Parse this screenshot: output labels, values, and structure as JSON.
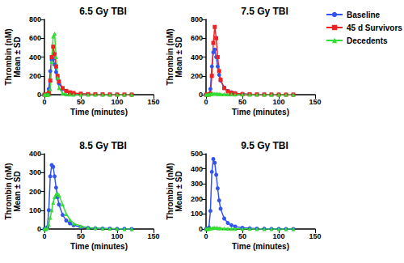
{
  "chart_data": [
    {
      "type": "line",
      "title": "6.5 Gy TBI",
      "x_label": "Time (minutes)",
      "y_label": "Thrombin (nM)\nMean ± SD",
      "x": [
        0,
        2,
        4,
        6,
        8,
        10,
        12,
        14,
        16,
        18,
        20,
        25,
        30,
        35,
        40,
        50,
        60,
        70,
        80,
        90,
        100,
        110,
        120
      ],
      "series": [
        {
          "name": "Baseline",
          "color": "#3355ee",
          "marker": "circle",
          "line_style": "solid",
          "values": [
            0,
            0,
            5,
            60,
            250,
            370,
            380,
            320,
            240,
            170,
            120,
            60,
            35,
            22,
            15,
            8,
            5,
            3,
            2,
            1,
            1,
            0,
            0
          ]
        },
        {
          "name": "45 d Survivors",
          "color": "#ee2222",
          "marker": "square",
          "line_style": "solid",
          "values": [
            0,
            0,
            0,
            20,
            150,
            400,
            510,
            430,
            300,
            200,
            140,
            70,
            40,
            25,
            18,
            10,
            6,
            4,
            3,
            2,
            1,
            1,
            0
          ]
        },
        {
          "name": "Decedents",
          "color": "#33dd33",
          "marker": "triangle",
          "line_style": "solid",
          "values": [
            0,
            0,
            0,
            0,
            60,
            350,
            620,
            650,
            400,
            180,
            70,
            15,
            5,
            2,
            1,
            0,
            0,
            0,
            0,
            0,
            0,
            0,
            0
          ]
        }
      ],
      "xlim": [
        0,
        150
      ],
      "xticks": [
        0,
        50,
        100,
        150
      ],
      "ylim": [
        0,
        800
      ],
      "yticks": [
        0,
        200,
        400,
        600,
        800
      ],
      "grid": false
    },
    {
      "type": "line",
      "title": "7.5 Gy TBI",
      "x_label": "Time (minutes)",
      "y_label": "Thrombin (nM)\nMean ± SD",
      "x": [
        0,
        2,
        4,
        6,
        8,
        10,
        12,
        14,
        16,
        18,
        20,
        25,
        30,
        35,
        40,
        50,
        60,
        70,
        80,
        90,
        100,
        110,
        120
      ],
      "series": [
        {
          "name": "Baseline",
          "color": "#3355ee",
          "marker": "circle",
          "line_style": "solid",
          "values": [
            0,
            0,
            5,
            60,
            300,
            450,
            480,
            400,
            300,
            210,
            150,
            75,
            40,
            25,
            16,
            8,
            5,
            3,
            2,
            1,
            1,
            0,
            0
          ]
        },
        {
          "name": "45 d Survivors",
          "color": "#ee2222",
          "marker": "square",
          "line_style": "solid",
          "values": [
            0,
            0,
            0,
            10,
            200,
            550,
            720,
            600,
            400,
            250,
            160,
            70,
            35,
            20,
            12,
            6,
            4,
            2,
            1,
            1,
            0,
            0,
            0
          ]
        },
        {
          "name": "Decedents",
          "color": "#33dd33",
          "marker": "triangle",
          "line_style": "solid",
          "values": [
            0,
            0,
            2,
            5,
            8,
            10,
            10,
            10,
            9,
            8,
            7,
            6,
            5,
            4,
            3,
            2,
            1,
            1,
            0,
            0,
            0,
            0,
            0
          ]
        }
      ],
      "xlim": [
        0,
        150
      ],
      "xticks": [
        0,
        50,
        100,
        150
      ],
      "ylim": [
        0,
        800
      ],
      "yticks": [
        0,
        200,
        400,
        600,
        800
      ],
      "grid": false,
      "legend": "right"
    },
    {
      "type": "line",
      "title": "8.5 Gy TBI",
      "x_label": "Time (minutes)",
      "y_label": "Thrombin (nM)\nMean ± SD",
      "x": [
        0,
        2,
        4,
        6,
        8,
        10,
        12,
        14,
        16,
        18,
        20,
        25,
        30,
        35,
        40,
        50,
        60,
        70,
        80,
        90,
        100,
        110,
        120
      ],
      "series": [
        {
          "name": "Baseline",
          "color": "#3355ee",
          "marker": "circle",
          "line_style": "solid",
          "values": [
            0,
            0,
            10,
            100,
            280,
            340,
            330,
            280,
            220,
            170,
            130,
            75,
            45,
            30,
            20,
            10,
            6,
            4,
            3,
            2,
            1,
            1,
            0
          ]
        },
        {
          "name": "Decedents",
          "color": "#33dd33",
          "marker": "triangle",
          "line_style": "solid",
          "values": [
            0,
            0,
            5,
            25,
            60,
            100,
            140,
            170,
            185,
            190,
            180,
            130,
            80,
            50,
            30,
            15,
            8,
            5,
            3,
            2,
            1,
            0,
            0
          ]
        }
      ],
      "xlim": [
        0,
        150
      ],
      "xticks": [
        0,
        50,
        100,
        150
      ],
      "ylim": [
        0,
        400
      ],
      "yticks": [
        0,
        100,
        200,
        300,
        400
      ],
      "grid": false
    },
    {
      "type": "line",
      "title": "9.5 Gy TBI",
      "x_label": "Time (minutes)",
      "y_label": "Thrombin (nM)\nMean ± SD",
      "x": [
        0,
        2,
        4,
        6,
        8,
        10,
        12,
        14,
        16,
        18,
        20,
        25,
        30,
        35,
        40,
        50,
        60,
        70,
        80,
        90,
        100,
        110,
        120
      ],
      "series": [
        {
          "name": "Baseline",
          "color": "#3355ee",
          "marker": "circle",
          "line_style": "solid",
          "values": [
            0,
            0,
            10,
            120,
            380,
            465,
            440,
            360,
            270,
            190,
            135,
            70,
            40,
            25,
            16,
            8,
            5,
            3,
            2,
            1,
            1,
            0,
            0
          ]
        },
        {
          "name": "Decedents",
          "color": "#33dd33",
          "marker": "triangle",
          "line_style": "solid",
          "values": [
            0,
            0,
            2,
            4,
            6,
            8,
            8,
            8,
            7,
            6,
            5,
            4,
            3,
            2,
            2,
            1,
            1,
            0,
            0,
            0,
            0,
            0,
            0
          ]
        }
      ],
      "xlim": [
        0,
        150
      ],
      "xticks": [
        0,
        50,
        100,
        150
      ],
      "ylim": [
        0,
        500
      ],
      "yticks": [
        0,
        100,
        200,
        300,
        400,
        500
      ],
      "grid": false
    }
  ]
}
